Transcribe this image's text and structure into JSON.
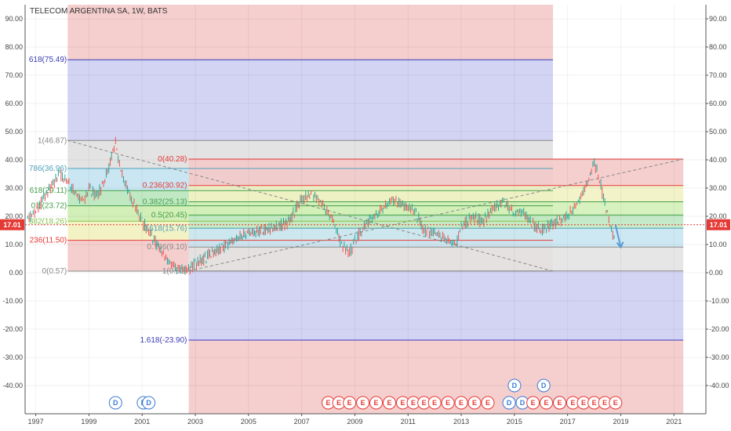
{
  "title": "TELECOM ARGENTINA SA, 1W, BATS",
  "price_label": "17.01",
  "colors": {
    "up": "#26a69a",
    "down": "#ef5350",
    "red_zone": "#f4c9c9",
    "blue_zone": "#d3d3f3",
    "grey_zone": "#e3e3e3",
    "price_line": "#e53935"
  },
  "chart_data": {
    "type": "line",
    "title": "TELECOM ARGENTINA SA, 1W, BATS",
    "xlabel": "",
    "ylabel": "",
    "ylim": [
      -50,
      95
    ],
    "xlim": [
      1996.6,
      2022.2
    ],
    "y_ticks": [
      "90.00",
      "80.00",
      "70.00",
      "60.00",
      "50.00",
      "40.00",
      "30.00",
      "20.00",
      "10.00",
      "0.00",
      "-10.00",
      "-20.00",
      "-30.00",
      "-40.00"
    ],
    "y_tick_values": [
      90,
      80,
      70,
      60,
      50,
      40,
      30,
      20,
      10,
      0,
      -10,
      -20,
      -30,
      -40
    ],
    "x_ticks": [
      "1997",
      "1999",
      "2001",
      "2003",
      "2005",
      "2007",
      "2009",
      "2011",
      "2013",
      "2015",
      "2017",
      "2019",
      "2021"
    ],
    "x_tick_values": [
      1997,
      1999,
      2001,
      2003,
      2005,
      2007,
      2009,
      2011,
      2013,
      2015,
      2017,
      2019,
      2021
    ],
    "current_price": 17.01,
    "series": [
      {
        "x": [
          1996.7,
          1997.0,
          1997.3,
          1997.6,
          1997.9,
          1998.2,
          1998.5,
          1998.8,
          1999.0,
          1999.3,
          1999.6,
          1999.9,
          2000.0,
          2000.2,
          2000.5,
          2000.8,
          2001.0,
          2001.3,
          2001.6,
          2001.9,
          2002.2,
          2002.5,
          2002.7,
          2003.0,
          2003.5,
          2004.0,
          2004.5,
          2005.0,
          2005.5,
          2006.0,
          2006.5,
          2007.0,
          2007.4,
          2007.8,
          2008.2,
          2008.5,
          2008.8,
          2009.0,
          2009.3,
          2009.6,
          2010.0,
          2010.4,
          2010.8,
          2011.0,
          2011.3,
          2011.6,
          2012.0,
          2012.4,
          2012.8,
          2013.0,
          2013.4,
          2013.8,
          2014.2,
          2014.6,
          2015.0,
          2015.3,
          2015.6,
          2016.0,
          2016.4,
          2016.8,
          2017.0,
          2017.4,
          2017.8,
          2018.0,
          2018.2,
          2018.4,
          2018.6,
          2018.8
        ],
        "values": [
          19,
          22,
          26,
          31,
          35,
          32,
          28,
          25,
          30,
          27,
          33,
          42,
          46,
          36,
          28,
          22,
          18,
          14,
          9,
          5,
          2,
          1,
          1,
          3,
          6,
          9,
          12,
          14,
          15,
          16,
          18,
          26,
          28,
          24,
          18,
          10,
          7,
          11,
          16,
          19,
          22,
          26,
          24,
          23,
          21,
          15,
          14,
          12,
          10,
          16,
          20,
          18,
          23,
          25,
          21,
          22,
          18,
          15,
          17,
          19,
          20,
          25,
          33,
          39,
          33,
          24,
          17,
          10
        ]
      }
    ],
    "forecast_arrow": {
      "x": [
        2018.8,
        2019.0
      ],
      "values": [
        17,
        9
      ]
    },
    "fib_left": {
      "levels": [
        {
          "label": "618(75.49)",
          "value": 75.49
        },
        {
          "label": "1(46.87)",
          "value": 46.87
        },
        {
          "label": "786(36.96)",
          "value": 36.96
        },
        {
          "label": "618(29.11)",
          "value": 29.11
        },
        {
          "label": "0.5(23.72)",
          "value": 23.72
        },
        {
          "label": "382(18.26)",
          "value": 18.26
        },
        {
          "label": "236(11.50)",
          "value": 11.5
        },
        {
          "label": "0(0.57)",
          "value": 0.57
        }
      ]
    },
    "fib_right": {
      "levels": [
        {
          "label": "0(40.28)",
          "value": 40.28
        },
        {
          "label": "0.236(30.92)",
          "value": 30.92
        },
        {
          "label": "0.382(25.13)",
          "value": 25.13
        },
        {
          "label": "0.5(20.45)",
          "value": 20.45
        },
        {
          "label": "0.618(15.76)",
          "value": 15.76
        },
        {
          "label": "0.786(9.10)",
          "value": 9.1
        },
        {
          "label": "1(0.61)",
          "value": 0.61
        },
        {
          "label": "1.618(-23.90)",
          "value": -23.9
        }
      ]
    },
    "event_markers": [
      {
        "x": 2000.0,
        "label": "D"
      },
      {
        "x": 2001.05,
        "label": "D"
      },
      {
        "x": 2001.25,
        "label": "D"
      },
      {
        "x": 2014.8,
        "label": "D"
      },
      {
        "x": 2016.7,
        "label": "D"
      },
      {
        "x": 2015.3,
        "label": "D"
      },
      {
        "x": 2008.0,
        "label": "E"
      },
      {
        "x": 2008.4,
        "label": "E"
      },
      {
        "x": 2008.8,
        "label": "E"
      },
      {
        "x": 2009.3,
        "label": "E"
      },
      {
        "x": 2009.8,
        "label": "E"
      },
      {
        "x": 2010.3,
        "label": "E"
      },
      {
        "x": 2010.8,
        "label": "E"
      },
      {
        "x": 2011.2,
        "label": "E"
      },
      {
        "x": 2011.6,
        "label": "E"
      },
      {
        "x": 2012.0,
        "label": "E"
      },
      {
        "x": 2012.5,
        "label": "E"
      },
      {
        "x": 2013.0,
        "label": "E"
      },
      {
        "x": 2013.5,
        "label": "E"
      },
      {
        "x": 2014.0,
        "label": "E"
      },
      {
        "x": 2015.7,
        "label": "E"
      },
      {
        "x": 2016.2,
        "label": "E"
      },
      {
        "x": 2016.7,
        "label": "E"
      },
      {
        "x": 2017.2,
        "label": "E"
      },
      {
        "x": 2017.6,
        "label": "E"
      },
      {
        "x": 2018.0,
        "label": "E"
      },
      {
        "x": 2018.4,
        "label": "E"
      },
      {
        "x": 2018.8,
        "label": "E"
      }
    ],
    "top_markers": [
      {
        "x": 2015.0,
        "label": "D"
      },
      {
        "x": 2016.1,
        "label": "D"
      }
    ]
  }
}
